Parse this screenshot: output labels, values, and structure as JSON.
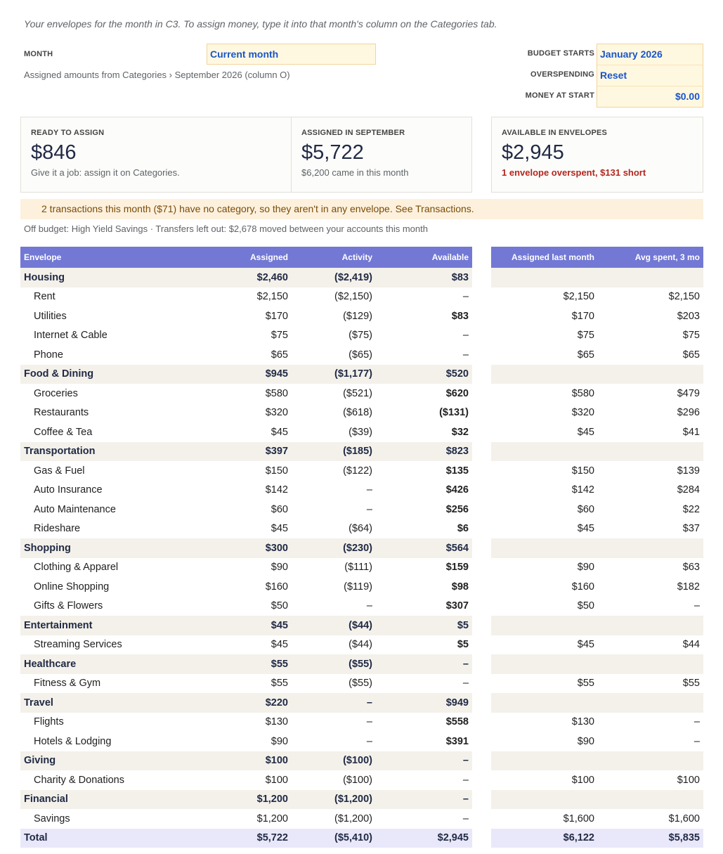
{
  "intro": "Your envelopes for the month in C3. To assign money, type it into that month's column on the Categories tab.",
  "controls": {
    "month_label": "MONTH",
    "month_value": "Current month",
    "assigned_from": "Assigned amounts from Categories › September 2026 (column O)",
    "budget_starts_label": "BUDGET STARTS",
    "budget_starts_value": "January 2026",
    "overspending_label": "OVERSPENDING",
    "overspending_value": "Reset",
    "money_at_start_label": "MONEY AT START",
    "money_at_start_value": "$0.00"
  },
  "cards": {
    "ready": {
      "label": "READY TO ASSIGN",
      "value": "$846",
      "note": "Give it a job: assign it on Categories."
    },
    "assigned": {
      "label": "ASSIGNED IN SEPTEMBER",
      "value": "$5,722",
      "note": "$6,200 came in this month"
    },
    "available": {
      "label": "AVAILABLE IN ENVELOPES",
      "value": "$2,945",
      "warning": "1 envelope overspent, $131 short"
    }
  },
  "banner": "2 transactions this month ($71) have no category, so they aren't in any envelope. See Transactions.",
  "off_budget": "Off budget: High Yield Savings  ·  Transfers left out: $2,678 moved between your accounts this month",
  "table": {
    "headers": {
      "envelope": "Envelope",
      "assigned": "Assigned",
      "activity": "Activity",
      "available": "Available",
      "assigned_last": "Assigned last month",
      "avg_spent": "Avg spent, 3 mo"
    },
    "rows": [
      {
        "type": "group",
        "name": "Housing",
        "assigned": "$2,460",
        "activity": "($2,419)",
        "available": "$83",
        "status": "",
        "last": "",
        "avg": ""
      },
      {
        "type": "child",
        "name": "Rent",
        "assigned": "$2,150",
        "activity": "($2,150)",
        "available": "–",
        "status": "",
        "last": "$2,150",
        "avg": "$2,150"
      },
      {
        "type": "child",
        "name": "Utilities",
        "assigned": "$170",
        "activity": "($129)",
        "available": "$83",
        "status": "pos",
        "last": "$170",
        "avg": "$203"
      },
      {
        "type": "child",
        "name": "Internet & Cable",
        "assigned": "$75",
        "activity": "($75)",
        "available": "–",
        "status": "",
        "last": "$75",
        "avg": "$75"
      },
      {
        "type": "child",
        "name": "Phone",
        "assigned": "$65",
        "activity": "($65)",
        "available": "–",
        "status": "",
        "last": "$65",
        "avg": "$65"
      },
      {
        "type": "group",
        "name": "Food & Dining",
        "assigned": "$945",
        "activity": "($1,177)",
        "available": "$520",
        "status": "",
        "last": "",
        "avg": ""
      },
      {
        "type": "child",
        "name": "Groceries",
        "assigned": "$580",
        "activity": "($521)",
        "available": "$620",
        "status": "pos",
        "last": "$580",
        "avg": "$479"
      },
      {
        "type": "child",
        "name": "Restaurants",
        "assigned": "$320",
        "activity": "($618)",
        "available": "($131)",
        "status": "neg",
        "last": "$320",
        "avg": "$296"
      },
      {
        "type": "child",
        "name": "Coffee & Tea",
        "assigned": "$45",
        "activity": "($39)",
        "available": "$32",
        "status": "pos",
        "last": "$45",
        "avg": "$41"
      },
      {
        "type": "group",
        "name": "Transportation",
        "assigned": "$397",
        "activity": "($185)",
        "available": "$823",
        "status": "",
        "last": "",
        "avg": ""
      },
      {
        "type": "child",
        "name": "Gas & Fuel",
        "assigned": "$150",
        "activity": "($122)",
        "available": "$135",
        "status": "pos",
        "last": "$150",
        "avg": "$139"
      },
      {
        "type": "child",
        "name": "Auto Insurance",
        "assigned": "$142",
        "activity": "–",
        "available": "$426",
        "status": "pos",
        "last": "$142",
        "avg": "$284"
      },
      {
        "type": "child",
        "name": "Auto Maintenance",
        "assigned": "$60",
        "activity": "–",
        "available": "$256",
        "status": "pos",
        "last": "$60",
        "avg": "$22"
      },
      {
        "type": "child",
        "name": "Rideshare",
        "assigned": "$45",
        "activity": "($64)",
        "available": "$6",
        "status": "low",
        "last": "$45",
        "avg": "$37"
      },
      {
        "type": "group",
        "name": "Shopping",
        "assigned": "$300",
        "activity": "($230)",
        "available": "$564",
        "status": "",
        "last": "",
        "avg": ""
      },
      {
        "type": "child",
        "name": "Clothing & Apparel",
        "assigned": "$90",
        "activity": "($111)",
        "available": "$159",
        "status": "pos",
        "last": "$90",
        "avg": "$63"
      },
      {
        "type": "child",
        "name": "Online Shopping",
        "assigned": "$160",
        "activity": "($119)",
        "available": "$98",
        "status": "pos",
        "last": "$160",
        "avg": "$182"
      },
      {
        "type": "child",
        "name": "Gifts & Flowers",
        "assigned": "$50",
        "activity": "–",
        "available": "$307",
        "status": "pos",
        "last": "$50",
        "avg": "–"
      },
      {
        "type": "group",
        "name": "Entertainment",
        "assigned": "$45",
        "activity": "($44)",
        "available": "$5",
        "status": "",
        "last": "",
        "avg": ""
      },
      {
        "type": "child",
        "name": "Streaming Services",
        "assigned": "$45",
        "activity": "($44)",
        "available": "$5",
        "status": "low",
        "last": "$45",
        "avg": "$44"
      },
      {
        "type": "group",
        "name": "Healthcare",
        "assigned": "$55",
        "activity": "($55)",
        "available": "–",
        "status": "",
        "last": "",
        "avg": ""
      },
      {
        "type": "child",
        "name": "Fitness & Gym",
        "assigned": "$55",
        "activity": "($55)",
        "available": "–",
        "status": "",
        "last": "$55",
        "avg": "$55"
      },
      {
        "type": "group",
        "name": "Travel",
        "assigned": "$220",
        "activity": "–",
        "available": "$949",
        "status": "",
        "last": "",
        "avg": ""
      },
      {
        "type": "child",
        "name": "Flights",
        "assigned": "$130",
        "activity": "–",
        "available": "$558",
        "status": "pos",
        "last": "$130",
        "avg": "–"
      },
      {
        "type": "child",
        "name": "Hotels & Lodging",
        "assigned": "$90",
        "activity": "–",
        "available": "$391",
        "status": "pos",
        "last": "$90",
        "avg": "–"
      },
      {
        "type": "group",
        "name": "Giving",
        "assigned": "$100",
        "activity": "($100)",
        "available": "–",
        "status": "",
        "last": "",
        "avg": ""
      },
      {
        "type": "child",
        "name": "Charity & Donations",
        "assigned": "$100",
        "activity": "($100)",
        "available": "–",
        "status": "",
        "last": "$100",
        "avg": "$100"
      },
      {
        "type": "group",
        "name": "Financial",
        "assigned": "$1,200",
        "activity": "($1,200)",
        "available": "–",
        "status": "",
        "last": "",
        "avg": ""
      },
      {
        "type": "child",
        "name": "Savings",
        "assigned": "$1,200",
        "activity": "($1,200)",
        "available": "–",
        "status": "",
        "last": "$1,600",
        "avg": "$1,600"
      },
      {
        "type": "total",
        "name": "Total",
        "assigned": "$5,722",
        "activity": "($5,410)",
        "available": "$2,945",
        "status": "",
        "last": "$6,122",
        "avg": "$5,835"
      }
    ]
  }
}
